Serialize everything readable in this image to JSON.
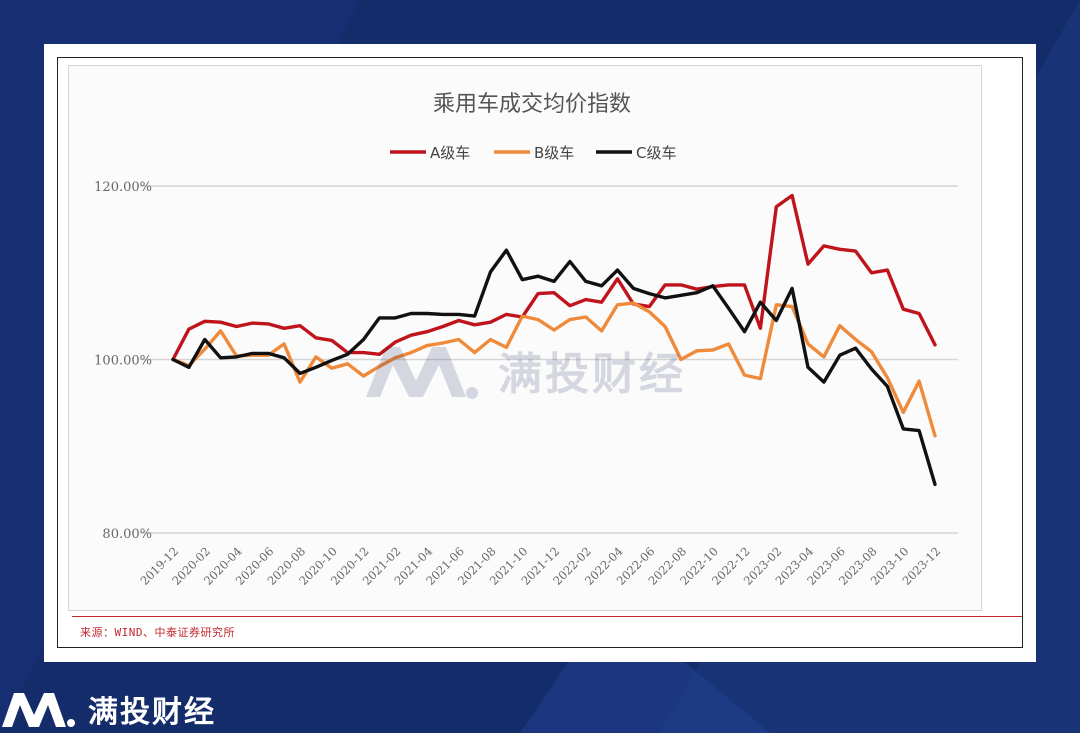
{
  "chart_data": {
    "type": "line",
    "title": "乘用车成交均价指数",
    "categories": [
      "2019-12",
      "2020-01",
      "2020-02",
      "2020-03",
      "2020-04",
      "2020-05",
      "2020-06",
      "2020-07",
      "2020-08",
      "2020-09",
      "2020-10",
      "2020-11",
      "2020-12",
      "2021-01",
      "2021-02",
      "2021-03",
      "2021-04",
      "2021-05",
      "2021-06",
      "2021-07",
      "2021-08",
      "2021-09",
      "2021-10",
      "2021-11",
      "2021-12",
      "2022-01",
      "2022-02",
      "2022-03",
      "2022-04",
      "2022-05",
      "2022-06",
      "2022-07",
      "2022-08",
      "2022-09",
      "2022-10",
      "2022-11",
      "2022-12",
      "2023-01",
      "2023-02",
      "2023-03",
      "2023-04",
      "2023-05",
      "2023-06",
      "2023-07",
      "2023-08",
      "2023-09",
      "2023-10",
      "2023-11",
      "2023-12"
    ],
    "x_tick_labels": [
      "2019-12",
      "2020-02",
      "2020-04",
      "2020-06",
      "2020-08",
      "2020-10",
      "2020-12",
      "2021-02",
      "2021-04",
      "2021-06",
      "2021-08",
      "2021-10",
      "2021-12",
      "2022-02",
      "2022-04",
      "2022-06",
      "2022-08",
      "2022-10",
      "2022-12",
      "2023-02",
      "2023-04",
      "2023-06",
      "2023-08",
      "2023-10",
      "2023-12"
    ],
    "y_ticks": [
      80,
      100,
      120
    ],
    "y_tick_labels": [
      "80.00%",
      "100.00%",
      "120.00%"
    ],
    "ylim": [
      80,
      120
    ],
    "grid": true,
    "legend_position": "top",
    "series": [
      {
        "name": "A级车",
        "color": "#c0141c",
        "values": [
          100.0,
          103.5,
          104.4,
          104.3,
          103.8,
          104.2,
          104.1,
          103.6,
          103.9,
          102.5,
          102.2,
          100.8,
          100.8,
          100.6,
          102.0,
          102.8,
          103.2,
          103.8,
          104.5,
          104.0,
          104.3,
          105.2,
          104.9,
          107.6,
          107.7,
          106.2,
          106.9,
          106.6,
          109.3,
          106.4,
          106.1,
          108.6,
          108.6,
          108.1,
          108.4,
          108.6,
          108.6,
          103.6,
          117.6,
          118.9,
          111.0,
          113.1,
          112.7,
          112.5,
          110.0,
          110.3,
          105.8,
          105.3,
          101.7
        ]
      },
      {
        "name": "B级车",
        "color": "#ee8a3a",
        "values": [
          100.0,
          99.3,
          101.2,
          103.3,
          100.4,
          100.5,
          100.5,
          101.8,
          97.4,
          100.3,
          99.0,
          99.5,
          98.1,
          99.2,
          100.2,
          100.8,
          101.6,
          101.9,
          102.3,
          100.8,
          102.3,
          101.4,
          105.0,
          104.6,
          103.4,
          104.6,
          104.9,
          103.3,
          106.3,
          106.5,
          105.5,
          103.8,
          100.0,
          101.0,
          101.1,
          101.8,
          98.2,
          97.8,
          106.3,
          106.1,
          101.8,
          100.3,
          103.9,
          102.3,
          100.9,
          97.9,
          93.9,
          97.5,
          91.2
        ]
      },
      {
        "name": "C级车",
        "color": "#111111",
        "values": [
          100.0,
          99.1,
          102.3,
          100.2,
          100.3,
          100.7,
          100.7,
          100.2,
          98.4,
          99.1,
          99.9,
          100.6,
          102.3,
          104.8,
          104.8,
          105.3,
          105.3,
          105.2,
          105.2,
          105.0,
          110.1,
          112.6,
          109.2,
          109.6,
          109.0,
          111.3,
          109.0,
          108.5,
          110.3,
          108.2,
          107.6,
          107.1,
          107.4,
          107.7,
          108.5,
          105.9,
          103.2,
          106.6,
          104.5,
          108.2,
          99.1,
          97.4,
          100.5,
          101.3,
          98.9,
          96.9,
          92.0,
          91.8,
          85.6
        ]
      }
    ]
  },
  "source": "来源：WIND、中泰证券研究所",
  "watermark_text": "满投财经",
  "brand_text": "满投财经"
}
